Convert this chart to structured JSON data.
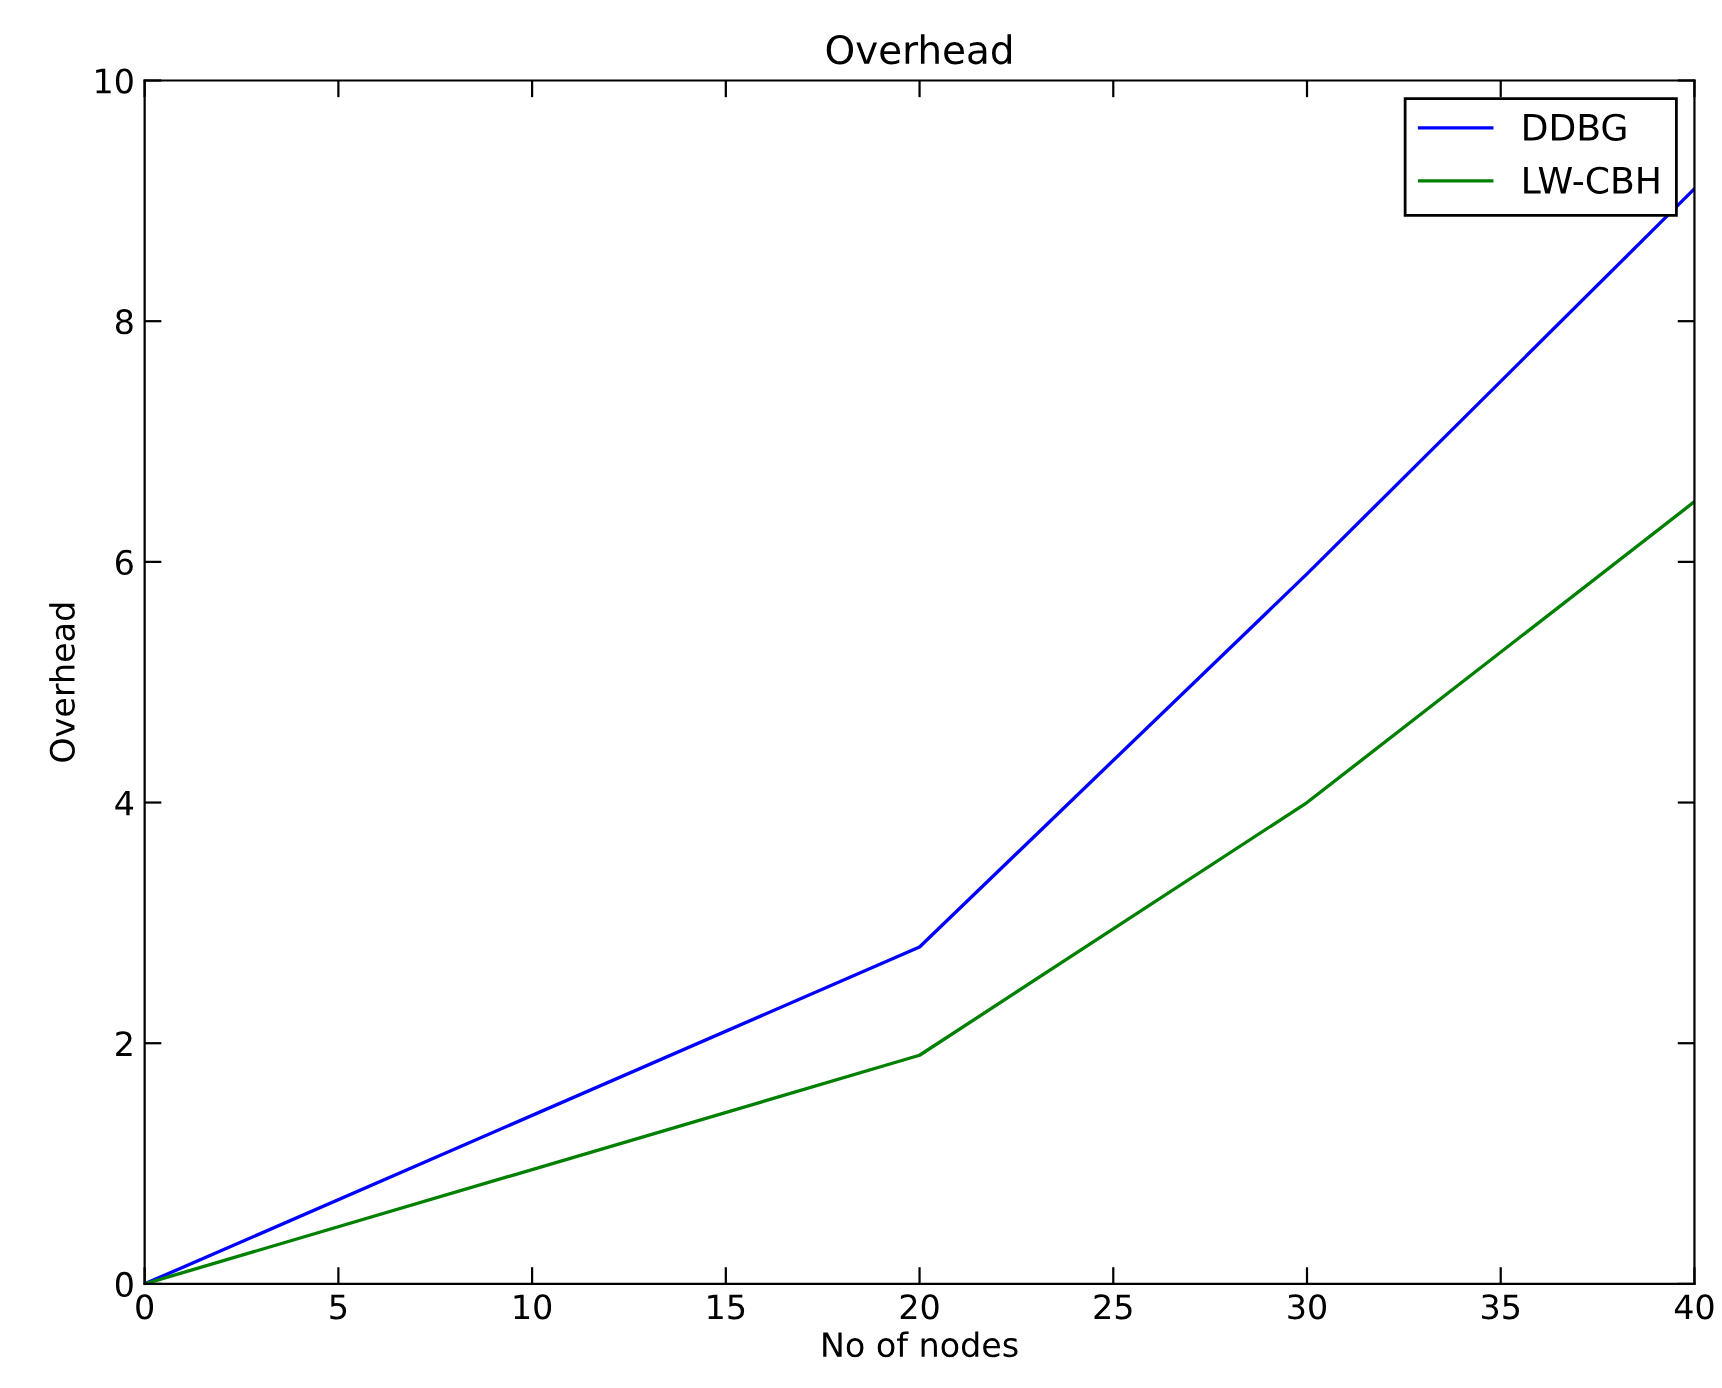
{
  "chart_data": {
    "type": "line",
    "title": "Overhead",
    "xlabel": "No of nodes",
    "ylabel": "Overhead",
    "x": [
      0,
      20,
      30,
      40
    ],
    "series": [
      {
        "name": "DDBG",
        "color": "#0000ff",
        "values": [
          0,
          2.8,
          5.9,
          9.1
        ]
      },
      {
        "name": "LW-CBH",
        "color": "#008000",
        "values": [
          0,
          1.9,
          4.0,
          6.5
        ]
      }
    ],
    "xlim": [
      0,
      40
    ],
    "xticks": [
      0,
      5,
      10,
      15,
      20,
      25,
      30,
      35,
      40
    ],
    "ylim": [
      0,
      10
    ],
    "yticks": [
      0,
      2,
      4,
      6,
      8,
      10
    ],
    "grid": false,
    "legend": "top right",
    "marker": "none",
    "line_style": "solid"
  }
}
